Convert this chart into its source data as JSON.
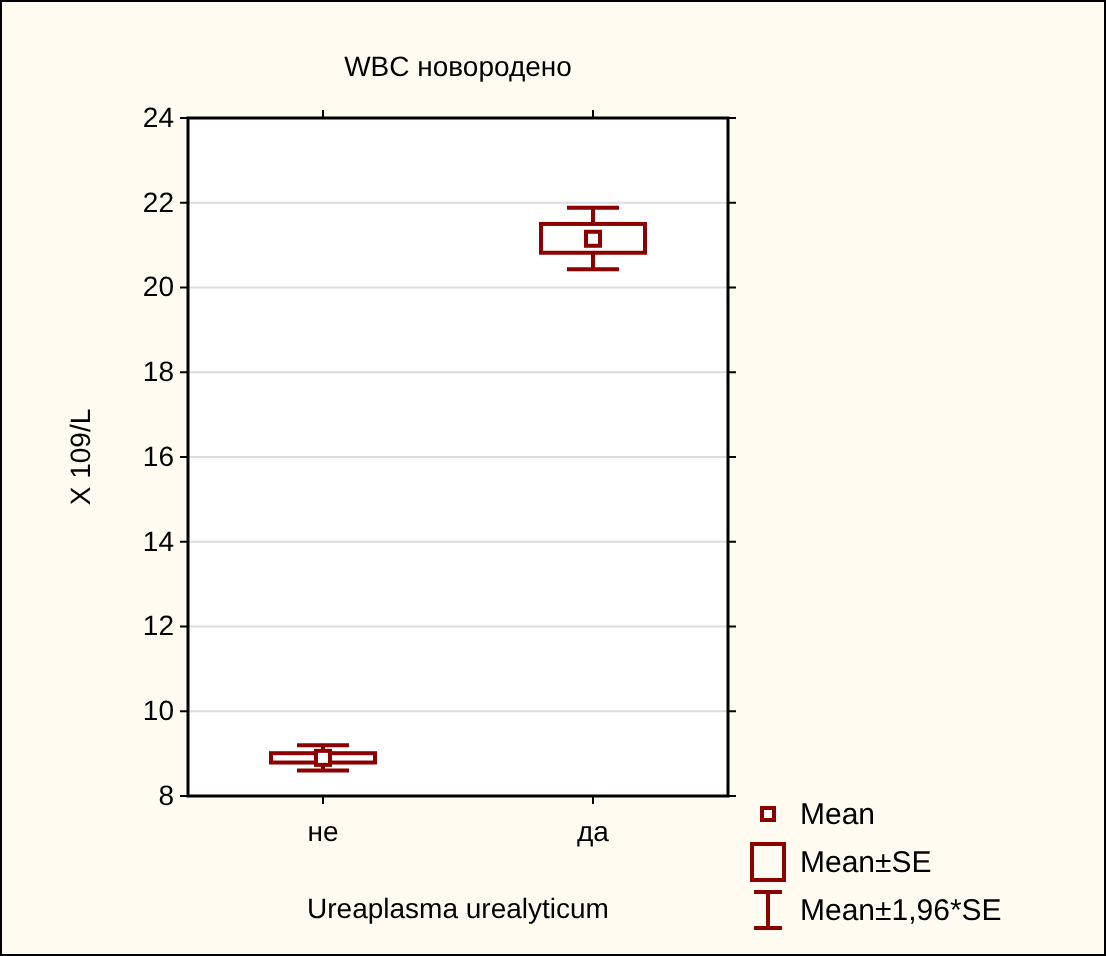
{
  "chart_data": {
    "type": "box",
    "title": "WBC новородено",
    "xlabel": "Ureaplasma urealyticum",
    "ylabel": "X 109/L",
    "categories": [
      "не",
      "да"
    ],
    "series": [
      {
        "color": "#8b0000",
        "boxes": [
          {
            "low": 8.6,
            "q1": 8.79,
            "median": 8.9,
            "q3": 9.01,
            "high": 9.2
          },
          {
            "low": 20.43,
            "q1": 20.82,
            "median": 21.15,
            "q3": 21.5,
            "high": 21.88
          }
        ]
      }
    ],
    "ylim": [
      8,
      24
    ],
    "yticks": [
      8,
      10,
      12,
      14,
      16,
      18,
      20,
      22,
      24
    ],
    "grid": "y",
    "annotations": [
      "Mean",
      "Mean±SE",
      "Mean±1,96*SE"
    ]
  }
}
